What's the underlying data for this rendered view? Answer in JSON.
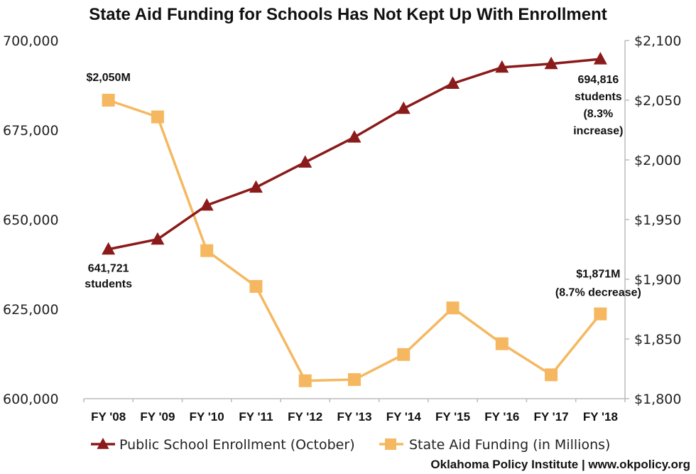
{
  "chart_data": {
    "type": "line",
    "title": "State Aid Funding for Schools Has Not Kept Up With Enrollment",
    "categories": [
      "FY '08",
      "FY '09",
      "FY '10",
      "FY '11",
      "FY '12",
      "FY '13",
      "FY '14",
      "FY '15",
      "FY '16",
      "FY '17",
      "FY '18"
    ],
    "left_axis": {
      "range": [
        600000,
        700000
      ],
      "ticks": [
        600000,
        625000,
        650000,
        675000,
        700000
      ],
      "tick_labels": [
        "600,000",
        "625,000",
        "650,000",
        "675,000",
        "700,000"
      ]
    },
    "right_axis": {
      "range": [
        1800,
        2100
      ],
      "ticks": [
        1800,
        1850,
        1900,
        1950,
        2000,
        2050,
        2100
      ],
      "tick_labels": [
        "$1,800",
        "$1,850",
        "$1,900",
        "$1,950",
        "$2,000",
        "$2,050",
        "$2,100"
      ]
    },
    "series": [
      {
        "name": "Public School Enrollment (October)",
        "axis": "left",
        "marker": "triangle",
        "color": "#8b1a1a",
        "values": [
          641721,
          644500,
          654000,
          659000,
          666000,
          673000,
          681000,
          688000,
          692500,
          693500,
          694816
        ]
      },
      {
        "name": "State Aid Funding (in Millions)",
        "axis": "right",
        "marker": "square",
        "color": "#f5b860",
        "values": [
          2050,
          2036,
          1924,
          1894,
          1815,
          1816,
          1837,
          1876,
          1846,
          1820,
          1871
        ]
      }
    ],
    "annotations": [
      {
        "series": 1,
        "point": 0,
        "lines": [
          "$2,050M"
        ]
      },
      {
        "series": 0,
        "point": 0,
        "lines": [
          "641,721",
          "students"
        ]
      },
      {
        "series": 0,
        "point": 10,
        "lines": [
          "694,816",
          "students",
          "(8.3%",
          "increase)"
        ]
      },
      {
        "series": 1,
        "point": 10,
        "lines": [
          "$1,871M",
          "(8.7% decrease)"
        ]
      }
    ],
    "legend_position": "bottom"
  },
  "source": "Oklahoma Policy Institute | www.okpolicy.org"
}
